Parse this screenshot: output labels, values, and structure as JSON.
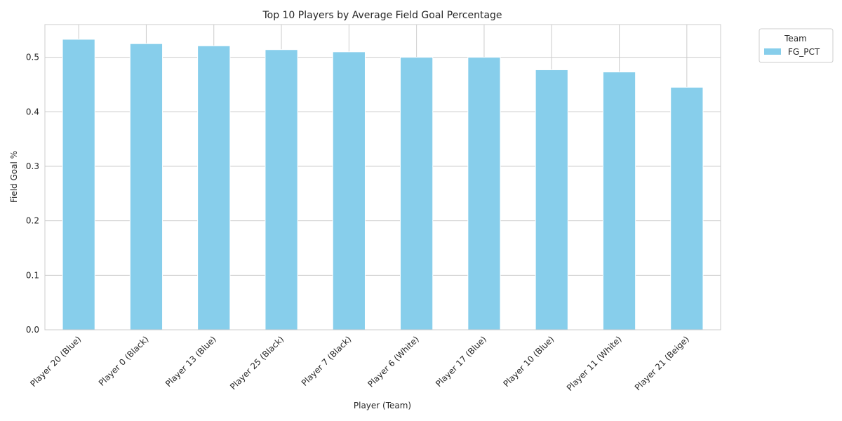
{
  "chart_data": {
    "type": "bar",
    "title": "Top 10 Players by Average Field Goal Percentage",
    "xlabel": "Player (Team)",
    "ylabel": "Field Goal %",
    "categories": [
      "Player 20 (Blue)",
      "Player 0 (Black)",
      "Player 13 (Blue)",
      "Player 25 (Black)",
      "Player 7 (Black)",
      "Player 6 (White)",
      "Player 17 (Blue)",
      "Player 10 (Blue)",
      "Player 11 (White)",
      "Player 21 (Beige)"
    ],
    "series": [
      {
        "name": "FG_PCT",
        "color": "#87ceeb",
        "values": [
          0.533,
          0.525,
          0.521,
          0.514,
          0.51,
          0.5,
          0.5,
          0.477,
          0.473,
          0.445
        ]
      }
    ],
    "ylim": [
      0,
      0.56
    ],
    "yticks": [
      0.0,
      0.1,
      0.2,
      0.3,
      0.4,
      0.5
    ],
    "ytick_labels": [
      "0.0",
      "0.1",
      "0.2",
      "0.3",
      "0.4",
      "0.5"
    ],
    "grid": true,
    "legend": {
      "title": "Team",
      "placement": "outside-top-right"
    }
  }
}
